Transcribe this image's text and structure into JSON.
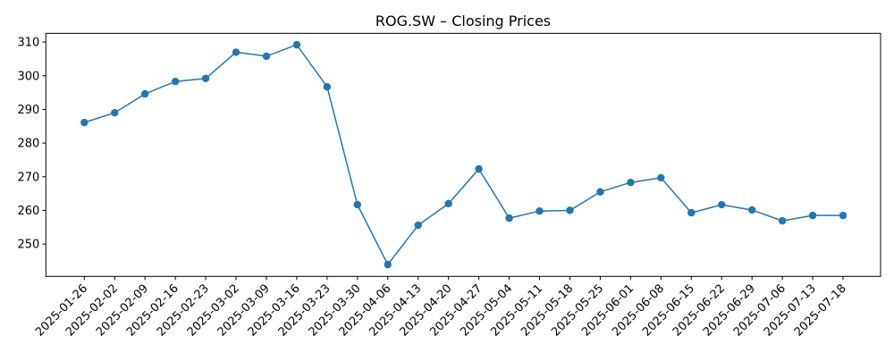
{
  "chart_data": {
    "type": "line",
    "title": "ROG.SW – Closing Prices",
    "xlabel": "",
    "ylabel": "",
    "categories": [
      "2025-01-26",
      "2025-02-02",
      "2025-02-09",
      "2025-02-16",
      "2025-02-23",
      "2025-03-02",
      "2025-03-09",
      "2025-03-16",
      "2025-03-23",
      "2025-03-30",
      "2025-04-06",
      "2025-04-13",
      "2025-04-20",
      "2025-04-27",
      "2025-05-04",
      "2025-05-11",
      "2025-05-18",
      "2025-05-25",
      "2025-06-01",
      "2025-06-08",
      "2025-06-15",
      "2025-06-22",
      "2025-06-29",
      "2025-07-06",
      "2025-07-13",
      "2025-07-18"
    ],
    "series": [
      {
        "name": "ROG.SW",
        "color": "#1f77b4",
        "values": [
          286.1,
          289.0,
          294.6,
          298.3,
          299.2,
          307.0,
          305.8,
          309.2,
          296.7,
          261.7,
          243.9,
          255.6,
          262.0,
          272.3,
          257.7,
          259.8,
          260.0,
          265.5,
          268.3,
          269.7,
          259.3,
          261.7,
          260.1,
          256.9,
          258.5,
          258.5
        ]
      }
    ],
    "yticks": [
      250,
      260,
      270,
      280,
      290,
      300,
      310
    ],
    "ylim": [
      240.4,
      312.6
    ],
    "grid": false,
    "legend": "none"
  }
}
